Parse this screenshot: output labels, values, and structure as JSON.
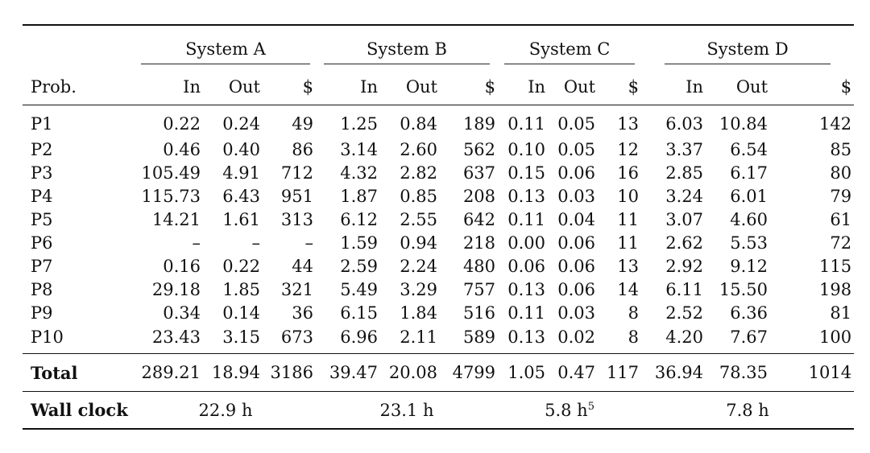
{
  "table": {
    "systems": [
      "System A",
      "System B",
      "System C",
      "System D"
    ],
    "prob_header": "Prob.",
    "col_headers": [
      "In",
      "Out",
      "$"
    ],
    "rows": [
      {
        "prob": "P1",
        "values": [
          "0.22",
          "0.24",
          "49",
          "1.25",
          "0.84",
          "189",
          "0.11",
          "0.05",
          "13",
          "6.03",
          "10.84",
          "142"
        ]
      },
      {
        "prob": "P2",
        "values": [
          "0.46",
          "0.40",
          "86",
          "3.14",
          "2.60",
          "562",
          "0.10",
          "0.05",
          "12",
          "3.37",
          "6.54",
          "85"
        ]
      },
      {
        "prob": "P3",
        "values": [
          "105.49",
          "4.91",
          "712",
          "4.32",
          "2.82",
          "637",
          "0.15",
          "0.06",
          "16",
          "2.85",
          "6.17",
          "80"
        ]
      },
      {
        "prob": "P4",
        "values": [
          "115.73",
          "6.43",
          "951",
          "1.87",
          "0.85",
          "208",
          "0.13",
          "0.03",
          "10",
          "3.24",
          "6.01",
          "79"
        ]
      },
      {
        "prob": "P5",
        "values": [
          "14.21",
          "1.61",
          "313",
          "6.12",
          "2.55",
          "642",
          "0.11",
          "0.04",
          "11",
          "3.07",
          "4.60",
          "61"
        ]
      },
      {
        "prob": "P6",
        "values": [
          "–",
          "–",
          "–",
          "1.59",
          "0.94",
          "218",
          "0.00",
          "0.06",
          "11",
          "2.62",
          "5.53",
          "72"
        ]
      },
      {
        "prob": "P7",
        "values": [
          "0.16",
          "0.22",
          "44",
          "2.59",
          "2.24",
          "480",
          "0.06",
          "0.06",
          "13",
          "2.92",
          "9.12",
          "115"
        ]
      },
      {
        "prob": "P8",
        "values": [
          "29.18",
          "1.85",
          "321",
          "5.49",
          "3.29",
          "757",
          "0.13",
          "0.06",
          "14",
          "6.11",
          "15.50",
          "198"
        ]
      },
      {
        "prob": "P9",
        "values": [
          "0.34",
          "0.14",
          "36",
          "6.15",
          "1.84",
          "516",
          "0.11",
          "0.03",
          "8",
          "2.52",
          "6.36",
          "81"
        ]
      },
      {
        "prob": "P10",
        "values": [
          "23.43",
          "3.15",
          "673",
          "6.96",
          "2.11",
          "589",
          "0.13",
          "0.02",
          "8",
          "4.20",
          "7.67",
          "100"
        ]
      }
    ],
    "total": {
      "label": "Total",
      "values": [
        "289.21",
        "18.94",
        "3186",
        "39.47",
        "20.08",
        "4799",
        "1.05",
        "0.47",
        "117",
        "36.94",
        "78.35",
        "1014"
      ]
    },
    "wall_clock": {
      "label": "Wall clock",
      "values": [
        "22.9 h",
        "23.1 h",
        "5.8 h",
        "7.8 h"
      ],
      "system_c_footnote": "5"
    }
  }
}
